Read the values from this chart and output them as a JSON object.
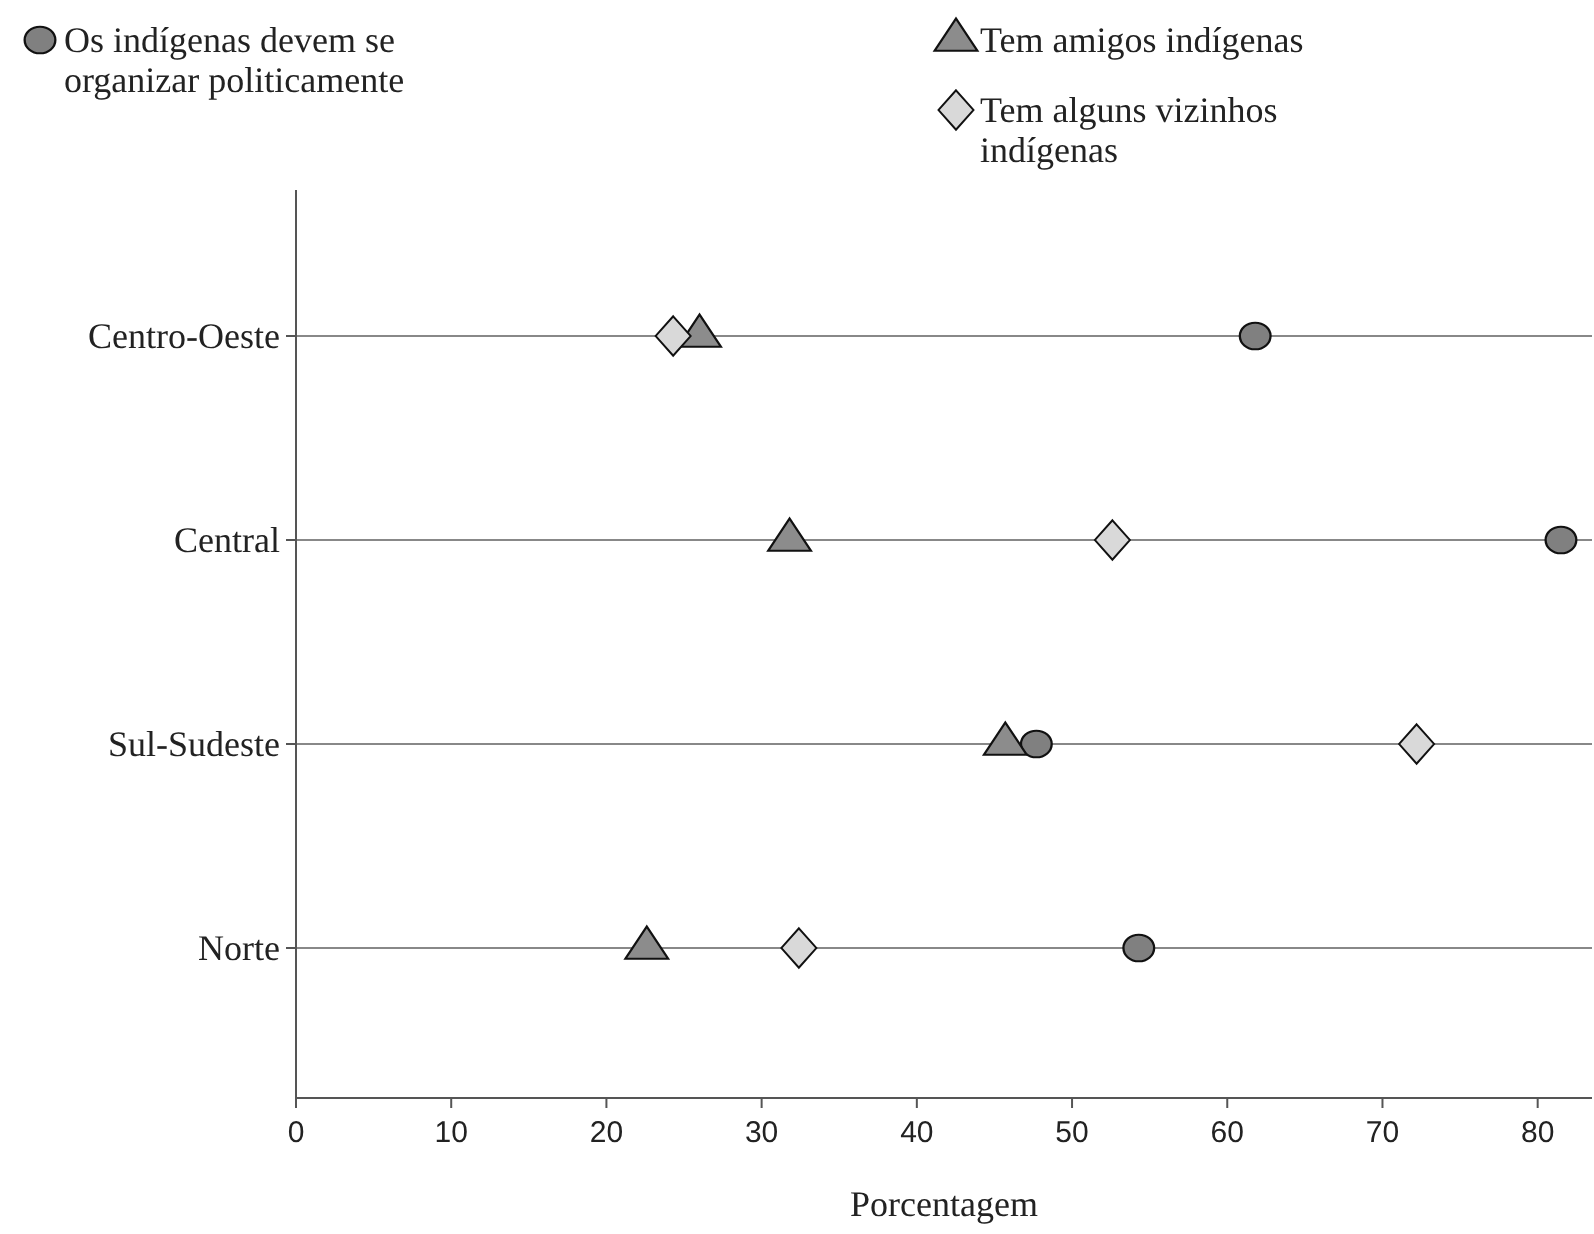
{
  "chart_data": {
    "type": "scatter",
    "orientation": "horizontal",
    "xlabel": "Porcentagem",
    "categories": [
      "Centro-Oeste",
      "Central",
      "Sul-Sudeste",
      "Norte"
    ],
    "xlim": [
      0,
      83.5
    ],
    "xticks": [
      0,
      10,
      20,
      30,
      40,
      50,
      60,
      70,
      80
    ],
    "grid": "y",
    "legend": "top",
    "series": [
      {
        "name": "Os indígenas devem se organizar politicamente",
        "color": "#808080",
        "marker": "circle",
        "values": [
          61.8,
          81.5,
          47.7,
          54.3
        ]
      },
      {
        "name": "Tem amigos indígenas",
        "color": "#8c8c8c",
        "marker": "triangle",
        "values": [
          26.0,
          31.8,
          45.7,
          22.6
        ]
      },
      {
        "name": "Tem alguns vizinhos indígenas",
        "color": "#d9d9d9",
        "marker": "diamond",
        "values": [
          24.3,
          52.6,
          72.2,
          32.4
        ]
      }
    ]
  }
}
